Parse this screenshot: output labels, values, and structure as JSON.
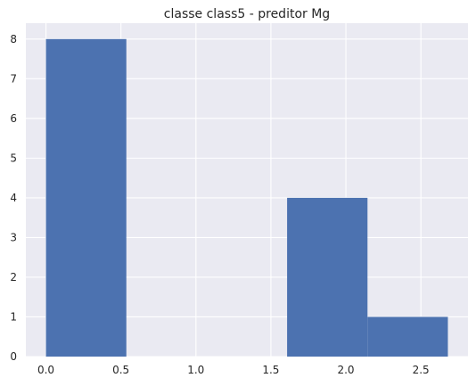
{
  "chart_data": {
    "type": "bar",
    "subtype": "histogram",
    "title": "classe class5 - preditor Mg",
    "xlabel": "",
    "ylabel": "",
    "bins": [
      {
        "start": 0.0,
        "end": 0.536,
        "count": 8
      },
      {
        "start": 0.536,
        "end": 1.072,
        "count": 0
      },
      {
        "start": 1.072,
        "end": 1.608,
        "count": 0
      },
      {
        "start": 1.608,
        "end": 2.144,
        "count": 4
      },
      {
        "start": 2.144,
        "end": 2.68,
        "count": 1
      }
    ],
    "xlim": [
      -0.134,
      2.814
    ],
    "ylim": [
      0,
      8.4
    ],
    "xticks": [
      0.0,
      0.5,
      1.0,
      1.5,
      2.0,
      2.5
    ],
    "xtick_labels": [
      "0.0",
      "0.5",
      "1.0",
      "1.5",
      "2.0",
      "2.5"
    ],
    "yticks": [
      0,
      1,
      2,
      3,
      4,
      5,
      6,
      7,
      8
    ],
    "ytick_labels": [
      "0",
      "1",
      "2",
      "3",
      "4",
      "5",
      "6",
      "7",
      "8"
    ],
    "grid": true,
    "style": "seaborn-darkgrid",
    "colors": {
      "bar": "#4c72b0",
      "plot_background": "#eaeaf2",
      "grid": "#ffffff",
      "text": "#262626"
    }
  }
}
